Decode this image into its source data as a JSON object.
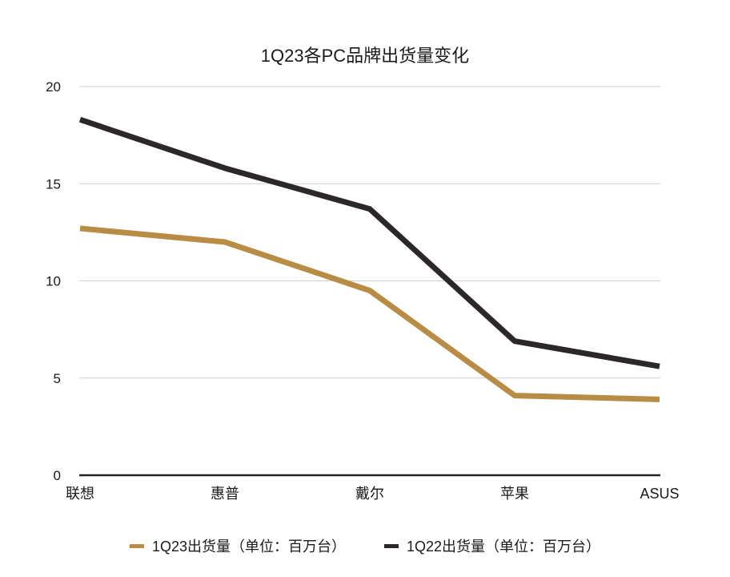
{
  "chart_data": {
    "type": "line",
    "title": "1Q23各PC品牌出货量变化",
    "xlabel": "",
    "ylabel": "",
    "categories": [
      "联想",
      "惠普",
      "戴尔",
      "苹果",
      "ASUS"
    ],
    "series": [
      {
        "name": "1Q23出货量（单位：百万台）",
        "color": "#B98C46",
        "values": [
          12.7,
          12.0,
          9.5,
          4.1,
          3.9
        ]
      },
      {
        "name": "1Q22出货量（单位：百万台）",
        "color": "#2B2827",
        "values": [
          18.3,
          15.8,
          13.7,
          6.9,
          5.6
        ]
      }
    ],
    "ylim": [
      0,
      20
    ],
    "yticks": [
      0,
      5,
      10,
      15,
      20
    ],
    "grid": true,
    "legend_position": "bottom"
  }
}
